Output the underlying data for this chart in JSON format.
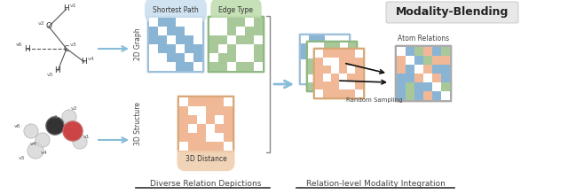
{
  "bg_color": "#ffffff",
  "title_modality": "Modality-Blending",
  "title_modality_bg": "#e8e8e8",
  "label_diverse": "Diverse Relation Depictions",
  "label_relation": "Relation-level Modality Integration",
  "label_shortest": "Shortest Path",
  "label_edge": "Edge Type",
  "label_3d_dist": "3D Distance",
  "label_2d": "2D Graph",
  "label_3d": "3D Structure",
  "label_atom": "Atom Relations",
  "label_random": "Random Sampling",
  "blue_color": "#8ab4d4",
  "blue_border": "#7aa8cc",
  "green_color": "#a8c89a",
  "green_border": "#90b882",
  "orange_color": "#f0b896",
  "orange_border": "#d8a080",
  "white_cell": "#ffffff",
  "text_color": "#444444",
  "arrow_blue": "#88b8d8",
  "matrix_n": 6,
  "cell_size": 10
}
